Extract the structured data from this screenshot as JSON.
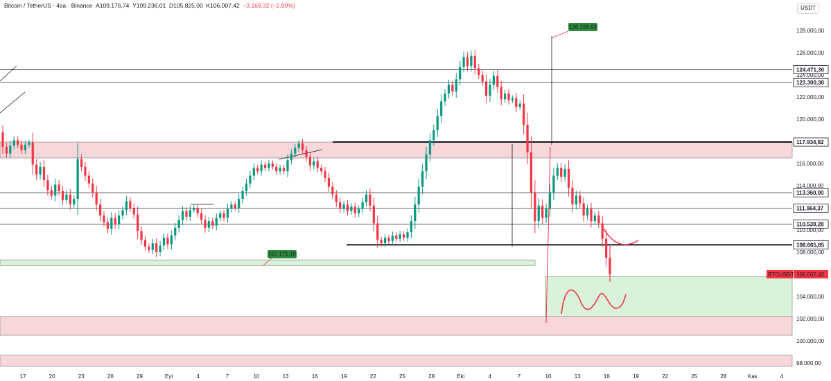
{
  "header": {
    "symbol": "Bitcoin / TetherUS · 4sa · Binance",
    "open": "A109.176,74",
    "high": "Y109.236,01",
    "low": "D105.825,00",
    "close": "K106.007,42",
    "change": "−3.169,32 (−2,90%)"
  },
  "currency_button": "USDT",
  "colors": {
    "up": "#089981",
    "down": "#f23645",
    "resistance_zone": "#f8d7da",
    "support_zone": "#d9f2d9",
    "label_green": "#2e8b3c"
  },
  "chart_data": {
    "type": "candlestick",
    "ylim": [
      97500,
      129500
    ],
    "y_ticks": [
      {
        "value": 128000,
        "label": "128.000,00"
      },
      {
        "value": 126000,
        "label": "126.000,00"
      },
      {
        "value": 124000,
        "label": "124.000,00"
      },
      {
        "value": 122000,
        "label": "122.000,00"
      },
      {
        "value": 120000,
        "label": "120.000,00"
      },
      {
        "value": 116000,
        "label": "116.000,00"
      },
      {
        "value": 114000,
        "label": "114.000,00"
      },
      {
        "value": 110000,
        "label": "110.000,00"
      },
      {
        "value": 108000,
        "label": "108.000,00"
      },
      {
        "value": 104000,
        "label": "104.000,00"
      },
      {
        "value": 102000,
        "label": "102.000,00"
      },
      {
        "value": 100000,
        "label": "100.000,00"
      },
      {
        "value": 98000,
        "label": "98.000,00"
      }
    ],
    "x_ticks": [
      "17",
      "20",
      "23",
      "26",
      "29",
      "Eyl",
      "4",
      "7",
      "10",
      "13",
      "16",
      "19",
      "22",
      "25",
      "28",
      "Eki",
      "4",
      "7",
      "10",
      "13",
      "16",
      "19",
      "22",
      "25",
      "28",
      "Kas",
      "4"
    ],
    "price_levels": [
      {
        "value": 124471.3,
        "label": "124.471,30",
        "style": "thin",
        "highlight": false
      },
      {
        "value": 123300.3,
        "label": "123.300,30",
        "style": "thin",
        "highlight": false
      },
      {
        "value": 117934.82,
        "label": "117.934,82",
        "style": "thick",
        "highlight": false
      },
      {
        "value": 113360.0,
        "label": "113.360,00",
        "style": "thin",
        "highlight": false
      },
      {
        "value": 111964.37,
        "label": "111.964,37",
        "style": "thin",
        "highlight": false
      },
      {
        "value": 110539.28,
        "label": "110.539,28",
        "style": "thin",
        "highlight": false
      },
      {
        "value": 108665.85,
        "label": "108.665,85",
        "style": "thick",
        "highlight": false
      }
    ],
    "current_price": {
      "symbol": "BTCUSDT",
      "value": 106007.42,
      "label": "106.007,42"
    },
    "zones": [
      {
        "kind": "resistance",
        "from": 116500,
        "to": 117934.82
      },
      {
        "kind": "support",
        "from": 106800,
        "to": 107300
      },
      {
        "kind": "support",
        "from": 101800,
        "to": 105800
      },
      {
        "kind": "resistance",
        "from": 100500,
        "to": 102200
      },
      {
        "kind": "resistance",
        "from": 97700,
        "to": 98700
      }
    ],
    "annotations": [
      {
        "label": "126.199,63",
        "value": 128400
      },
      {
        "label": "107.171,10",
        "value": 107800
      }
    ],
    "candles": [
      [
        118800,
        117500
      ],
      [
        117500,
        116900
      ],
      [
        116900,
        117600
      ],
      [
        117600,
        118100
      ],
      [
        118100,
        117700
      ],
      [
        117700,
        117200
      ],
      [
        117200,
        117700
      ],
      [
        117700,
        117900
      ],
      [
        117900,
        115900
      ],
      [
        115900,
        115000
      ],
      [
        115000,
        115700
      ],
      [
        115700,
        114500
      ],
      [
        114500,
        113600
      ],
      [
        113600,
        113100
      ],
      [
        113100,
        114100
      ],
      [
        114100,
        113500
      ],
      [
        113500,
        112700
      ],
      [
        112700,
        113200
      ],
      [
        113200,
        112300
      ],
      [
        112300,
        112800
      ],
      [
        112800,
        116400
      ],
      [
        116400,
        115700
      ],
      [
        115700,
        114900
      ],
      [
        114900,
        114200
      ],
      [
        114200,
        113400
      ],
      [
        113400,
        112300
      ],
      [
        112300,
        111300
      ],
      [
        111300,
        110700
      ],
      [
        110700,
        110100
      ],
      [
        110100,
        111100
      ],
      [
        111100,
        110500
      ],
      [
        110500,
        111300
      ],
      [
        111300,
        111800
      ],
      [
        111800,
        112600
      ],
      [
        112600,
        112000
      ],
      [
        112000,
        111400
      ],
      [
        111400,
        109900
      ],
      [
        109900,
        109100
      ],
      [
        109100,
        108500
      ],
      [
        108500,
        108200
      ],
      [
        108200,
        108800
      ],
      [
        108800,
        108000
      ],
      [
        108000,
        108600
      ],
      [
        108600,
        109300
      ],
      [
        109300,
        108700
      ],
      [
        108700,
        109500
      ],
      [
        109500,
        110200
      ],
      [
        110200,
        110900
      ],
      [
        110900,
        111700
      ],
      [
        111700,
        111200
      ],
      [
        111200,
        111800
      ],
      [
        111800,
        112000
      ],
      [
        112000,
        111500
      ],
      [
        111500,
        110900
      ],
      [
        110900,
        110200
      ],
      [
        110200,
        110800
      ],
      [
        110800,
        110400
      ],
      [
        110400,
        111100
      ],
      [
        111100,
        111500
      ],
      [
        111500,
        111100
      ],
      [
        111100,
        111900
      ],
      [
        111900,
        112300
      ],
      [
        112300,
        112000
      ],
      [
        112000,
        112800
      ],
      [
        112800,
        113500
      ],
      [
        113500,
        114200
      ],
      [
        114200,
        114900
      ],
      [
        114900,
        115600
      ],
      [
        115600,
        115300
      ],
      [
        115300,
        115900
      ],
      [
        115900,
        115600
      ],
      [
        115600,
        116000
      ],
      [
        116000,
        115700
      ],
      [
        115700,
        115300
      ],
      [
        115300,
        115600
      ],
      [
        115600,
        115300
      ],
      [
        115300,
        116300
      ],
      [
        116300,
        116900
      ],
      [
        116900,
        117400
      ],
      [
        117400,
        117800
      ],
      [
        117800,
        117200
      ],
      [
        117200,
        116600
      ],
      [
        116600,
        115800
      ],
      [
        115800,
        116200
      ],
      [
        116200,
        115600
      ],
      [
        115600,
        115300
      ],
      [
        115300,
        114700
      ],
      [
        114700,
        113900
      ],
      [
        113900,
        113200
      ],
      [
        113200,
        112500
      ],
      [
        112500,
        111900
      ],
      [
        111900,
        112300
      ],
      [
        112300,
        111700
      ],
      [
        111700,
        112100
      ],
      [
        112100,
        111500
      ],
      [
        111500,
        111900
      ],
      [
        111900,
        112500
      ],
      [
        112500,
        113200
      ],
      [
        113200,
        112200
      ],
      [
        112200,
        110600
      ],
      [
        110600,
        109100
      ],
      [
        109100,
        108800
      ],
      [
        108800,
        109300
      ],
      [
        109300,
        109000
      ],
      [
        109000,
        109500
      ],
      [
        109500,
        109200
      ],
      [
        109200,
        109600
      ],
      [
        109600,
        109300
      ],
      [
        109300,
        109800
      ],
      [
        109800,
        110800
      ],
      [
        110800,
        112300
      ],
      [
        112300,
        113900
      ],
      [
        113900,
        115300
      ],
      [
        115300,
        116800
      ],
      [
        116800,
        118100
      ],
      [
        118100,
        119000
      ],
      [
        119000,
        120300
      ],
      [
        120300,
        121600
      ],
      [
        121600,
        122300
      ],
      [
        122300,
        123100
      ],
      [
        123100,
        122500
      ],
      [
        122500,
        123600
      ],
      [
        123600,
        124700
      ],
      [
        124700,
        125600
      ],
      [
        125600,
        124800
      ],
      [
        124800,
        125700
      ],
      [
        125700,
        124600
      ],
      [
        124600,
        124000
      ],
      [
        124000,
        123400
      ],
      [
        123400,
        122100
      ],
      [
        122100,
        123100
      ],
      [
        123100,
        123900
      ],
      [
        123900,
        122900
      ],
      [
        122900,
        121800
      ],
      [
        121800,
        122300
      ],
      [
        122300,
        121700
      ],
      [
        121700,
        121900
      ],
      [
        121900,
        121100
      ],
      [
        121100,
        121400
      ],
      [
        121400,
        119500
      ],
      [
        119500,
        117000
      ],
      [
        117000,
        113400
      ],
      [
        113400,
        110800
      ],
      [
        110800,
        112200
      ],
      [
        112200,
        111100
      ],
      [
        111100,
        111900
      ],
      [
        111900,
        113400
      ],
      [
        113400,
        114900
      ],
      [
        114900,
        115600
      ],
      [
        115600,
        114800
      ],
      [
        114800,
        115500
      ],
      [
        115500,
        113800
      ],
      [
        113800,
        112300
      ],
      [
        112300,
        113100
      ],
      [
        113100,
        112400
      ],
      [
        112400,
        111300
      ],
      [
        111300,
        111900
      ],
      [
        111900,
        110800
      ],
      [
        110800,
        111300
      ],
      [
        111300,
        110600
      ],
      [
        110600,
        109200
      ],
      [
        109200,
        107500
      ],
      [
        107500,
        106007
      ]
    ]
  }
}
